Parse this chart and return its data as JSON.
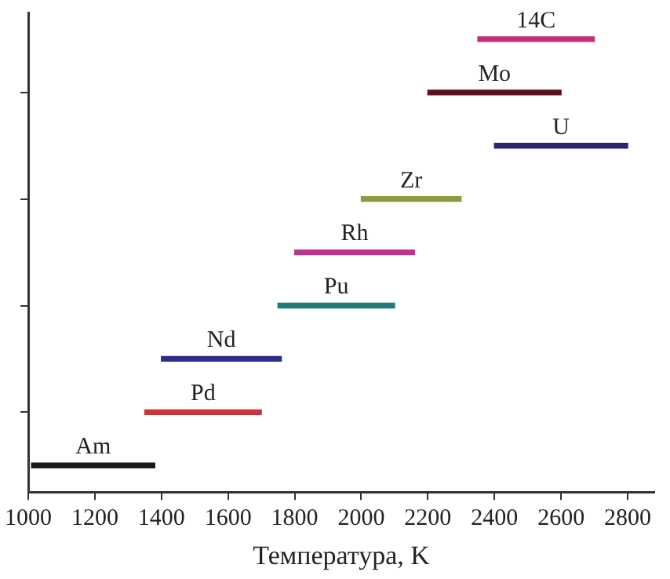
{
  "chart_data": {
    "type": "bar",
    "orientation": "horizontal",
    "xlabel": "Температура, K",
    "categories": [
      "14C",
      "Mo",
      "U",
      "Zr",
      "Rh",
      "Pu",
      "Nd",
      "Pd",
      "Am"
    ],
    "base": [
      2350,
      2200,
      2400,
      2000,
      1800,
      1750,
      1400,
      1350,
      1010
    ],
    "values": [
      350,
      400,
      400,
      300,
      360,
      350,
      360,
      350,
      370
    ],
    "colors": [
      "#c4307a",
      "#5a1020",
      "#2b2470",
      "#8c9a3c",
      "#b8388f",
      "#1f7a78",
      "#2e2b8c",
      "#c8343c",
      "#1a1a1a"
    ],
    "xlim": [
      1000,
      2880
    ],
    "xticks": [
      1000,
      1200,
      1400,
      1600,
      1800,
      2000,
      2200,
      2400,
      2600,
      2800
    ],
    "tick_labels": "x",
    "grid": false,
    "legend": false
  }
}
